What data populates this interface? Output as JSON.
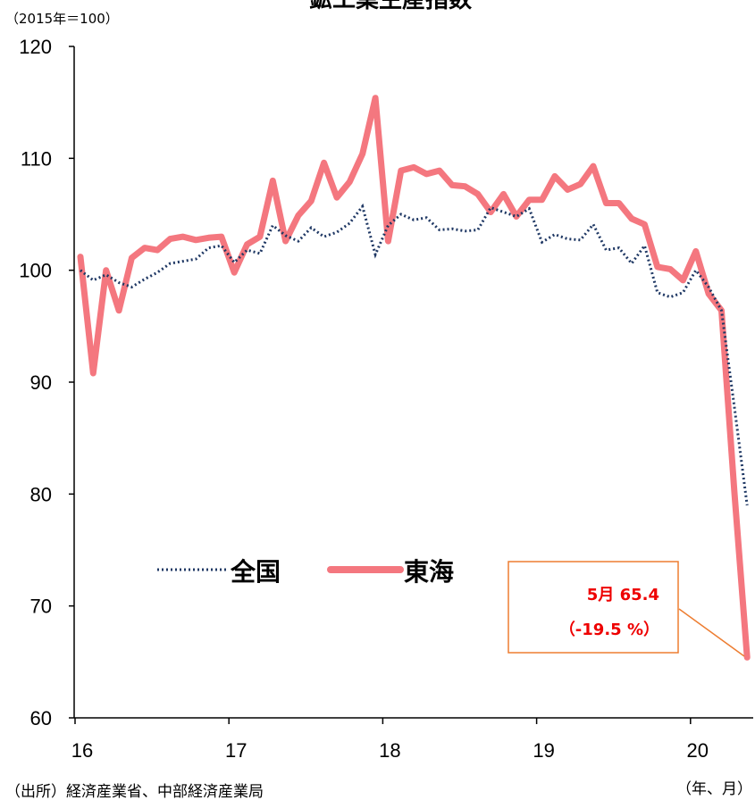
{
  "chart_data": {
    "type": "line",
    "title": "鉱工業生産指数",
    "unit_label": "（2015年＝100）",
    "x_axis_label": "（年、月）",
    "source": "（出所）経済産業省、中部経済産業局",
    "ylim": [
      60,
      120
    ],
    "y_ticks": [
      "60",
      "70",
      "80",
      "90",
      "100",
      "110",
      "120"
    ],
    "x_ticks": [
      "16",
      "17",
      "18",
      "19",
      "20"
    ],
    "x_tick_positions": [
      0,
      12,
      24,
      36,
      48
    ],
    "grid": false,
    "legend_position": "inside-lower-left",
    "series": [
      {
        "name": "全国",
        "style": "dotted",
        "color": "#1f3864",
        "values": [
          100.0,
          99.1,
          99.6,
          98.9,
          98.5,
          99.2,
          99.8,
          100.6,
          100.8,
          101.0,
          102.0,
          102.2,
          100.7,
          101.8,
          101.5,
          104.0,
          103.1,
          102.6,
          103.8,
          103.0,
          103.4,
          104.2,
          105.7,
          101.4,
          104.0,
          105.0,
          104.5,
          104.7,
          103.6,
          103.7,
          103.5,
          103.6,
          105.6,
          105.2,
          104.8,
          105.5,
          102.5,
          103.2,
          102.8,
          102.7,
          104.1,
          101.8,
          102.0,
          100.6,
          102.2,
          98.0,
          97.6,
          98.0,
          100.0,
          98.5,
          96.4,
          87.8,
          79.0
        ]
      },
      {
        "name": "東海",
        "style": "solid",
        "color": "#f4777f",
        "values": [
          101.2,
          90.8,
          100.0,
          96.4,
          101.1,
          102.0,
          101.8,
          102.8,
          103.0,
          102.7,
          102.9,
          103.0,
          99.8,
          102.3,
          103.0,
          108.0,
          102.6,
          104.9,
          106.2,
          109.6,
          106.5,
          107.9,
          110.4,
          115.4,
          102.6,
          108.9,
          109.2,
          108.6,
          108.9,
          107.6,
          107.5,
          106.8,
          105.2,
          106.8,
          104.8,
          106.3,
          106.3,
          108.4,
          107.2,
          107.7,
          109.3,
          106.0,
          106.0,
          104.6,
          104.1,
          100.3,
          100.1,
          99.1,
          101.7,
          97.9,
          96.4,
          80.2,
          65.4
        ]
      }
    ],
    "annotation": {
      "line1": "5月 65.4",
      "line2": "（-19.5 %）",
      "border_color": "#ed7d31",
      "text_color": "#ee0000"
    }
  }
}
